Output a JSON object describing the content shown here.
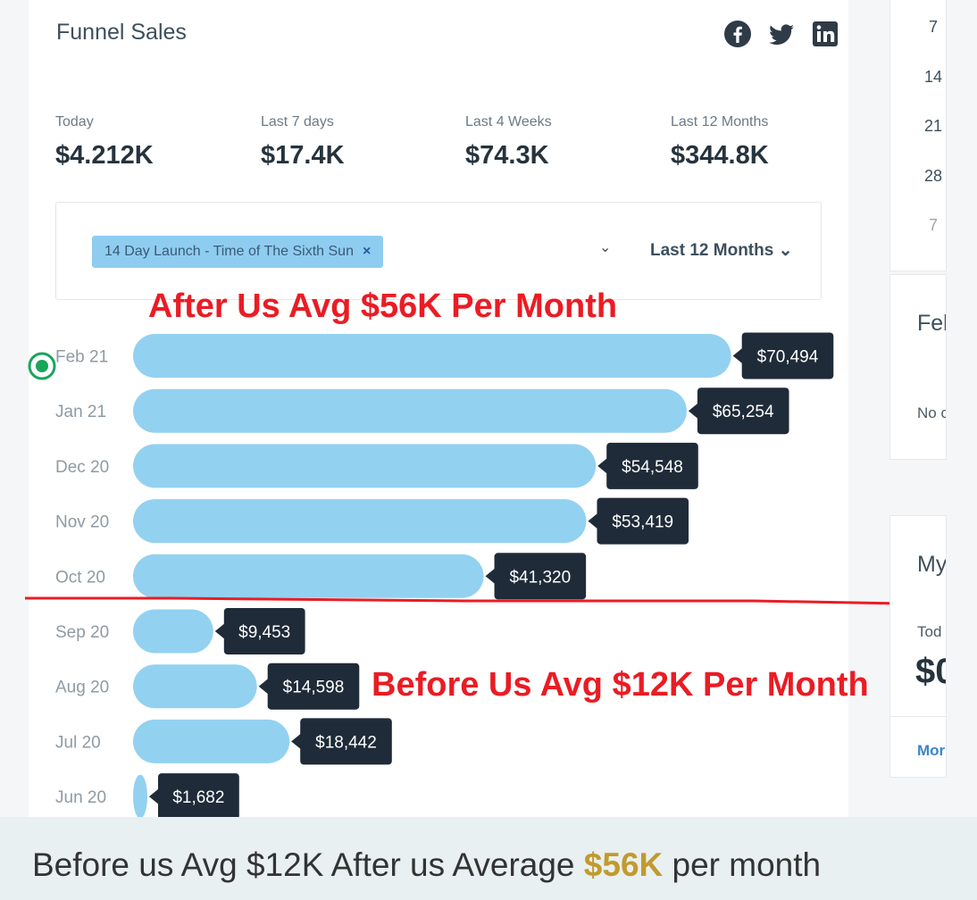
{
  "card": {
    "title": "Funnel Sales",
    "social": [
      "facebook-icon",
      "twitter-icon",
      "linkedin-icon"
    ]
  },
  "stats": [
    {
      "label": "Today",
      "value": "$4.212K"
    },
    {
      "label": "Last 7 days",
      "value": "$17.4K"
    },
    {
      "label": "Last 4 Weeks",
      "value": "$74.3K"
    },
    {
      "label": "Last 12 Months",
      "value": "$344.8K"
    }
  ],
  "filter": {
    "chip_label": "14 Day Launch - Time of The Sixth Sun",
    "chip_remove": "×",
    "chevron": "⌄",
    "period_label": "Last 12 Months ⌄"
  },
  "annotations": {
    "after": "After Us Avg $56K Per Month",
    "before": "Before Us Avg $12K Per Month"
  },
  "chart_data": {
    "type": "bar",
    "orientation": "horizontal",
    "categories": [
      "Feb 21",
      "Jan 21",
      "Dec 20",
      "Nov 20",
      "Oct 20",
      "Sep 20",
      "Aug 20",
      "Jul 20",
      "Jun 20"
    ],
    "values": [
      70494,
      65254,
      54548,
      53419,
      41320,
      9453,
      14598,
      18442,
      1682
    ],
    "value_labels": [
      "$70,494",
      "$65,254",
      "$54,548",
      "$53,419",
      "$41,320",
      "$9,453",
      "$14,598",
      "$18,442",
      "$1,682"
    ],
    "bar_color": "#93d1f1",
    "label_bg": "#1f2b38",
    "divider_color": "#ea1c24",
    "marker_color": "#19a55a"
  },
  "right_panel": {
    "calendar_numbers": [
      "7",
      "14",
      "21",
      "28",
      "7"
    ],
    "mid_heading": "Feb",
    "mid_text": "No c",
    "bottom_heading": "My",
    "bottom_label": "Tod",
    "bottom_value": "$0",
    "bottom_link": "Mor"
  },
  "caption": {
    "before": "Before us Avg $12K  After us Average",
    "highlight": "$56K",
    "after": "per month",
    "highlight_color": "#c29a2e"
  }
}
